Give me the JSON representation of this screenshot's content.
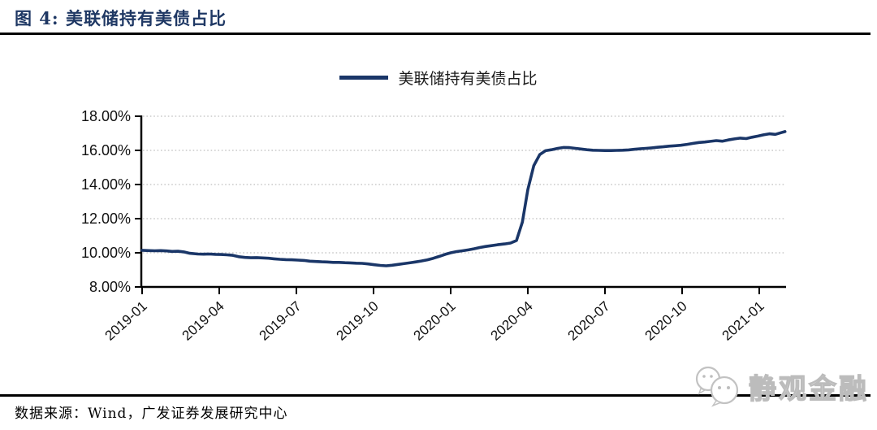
{
  "header": {
    "title": "图 4:  美联储持有美债占比"
  },
  "legend": {
    "label": "美联储持有美债占比"
  },
  "footer": {
    "source": "数据来源：Wind，广发证券发展研究中心"
  },
  "watermark": {
    "label": "静观金融",
    "icon": "wechat-icon"
  },
  "colors": {
    "line": "#1A3668",
    "title": "#1F3864",
    "grid": "#BFBFBF",
    "axis": "#000000",
    "watermark": "#C8C8C8"
  },
  "chart_data": {
    "type": "line",
    "title": "美联储持有美债占比",
    "ylabel": "",
    "xlabel": "",
    "ylim": [
      8,
      18
    ],
    "ytick_step": 2,
    "ytick_suffix": "%",
    "grid": "dotted-horizontal",
    "legend_position": "top-center",
    "xticks": [
      "2019-01",
      "2019-04",
      "2019-07",
      "2019-10",
      "2020-01",
      "2020-04",
      "2020-07",
      "2020-10",
      "2021-01"
    ],
    "series": [
      {
        "name": "美联储持有美债占比",
        "color": "#1A3668",
        "points": [
          [
            "2019-01-01",
            10.15
          ],
          [
            "2019-01-09",
            10.13
          ],
          [
            "2019-01-16",
            10.12
          ],
          [
            "2019-01-23",
            10.13
          ],
          [
            "2019-01-30",
            10.11
          ],
          [
            "2019-02-06",
            10.08
          ],
          [
            "2019-02-13",
            10.09
          ],
          [
            "2019-02-20",
            10.05
          ],
          [
            "2019-02-27",
            9.97
          ],
          [
            "2019-03-06",
            9.93
          ],
          [
            "2019-03-13",
            9.92
          ],
          [
            "2019-03-20",
            9.93
          ],
          [
            "2019-03-27",
            9.91
          ],
          [
            "2019-04-03",
            9.9
          ],
          [
            "2019-04-10",
            9.88
          ],
          [
            "2019-04-17",
            9.85
          ],
          [
            "2019-04-24",
            9.77
          ],
          [
            "2019-05-01",
            9.73
          ],
          [
            "2019-05-08",
            9.71
          ],
          [
            "2019-05-15",
            9.72
          ],
          [
            "2019-05-22",
            9.7
          ],
          [
            "2019-05-29",
            9.68
          ],
          [
            "2019-06-05",
            9.65
          ],
          [
            "2019-06-12",
            9.62
          ],
          [
            "2019-06-19",
            9.6
          ],
          [
            "2019-06-26",
            9.59
          ],
          [
            "2019-07-03",
            9.57
          ],
          [
            "2019-07-10",
            9.55
          ],
          [
            "2019-07-17",
            9.51
          ],
          [
            "2019-07-24",
            9.49
          ],
          [
            "2019-07-31",
            9.47
          ],
          [
            "2019-08-07",
            9.46
          ],
          [
            "2019-08-14",
            9.44
          ],
          [
            "2019-08-21",
            9.44
          ],
          [
            "2019-08-28",
            9.42
          ],
          [
            "2019-09-04",
            9.41
          ],
          [
            "2019-09-11",
            9.39
          ],
          [
            "2019-09-18",
            9.38
          ],
          [
            "2019-09-25",
            9.35
          ],
          [
            "2019-10-02",
            9.3
          ],
          [
            "2019-10-09",
            9.26
          ],
          [
            "2019-10-16",
            9.24
          ],
          [
            "2019-10-23",
            9.27
          ],
          [
            "2019-10-30",
            9.32
          ],
          [
            "2019-11-06",
            9.36
          ],
          [
            "2019-11-13",
            9.41
          ],
          [
            "2019-11-20",
            9.46
          ],
          [
            "2019-11-27",
            9.52
          ],
          [
            "2019-12-04",
            9.59
          ],
          [
            "2019-12-11",
            9.68
          ],
          [
            "2019-12-18",
            9.79
          ],
          [
            "2019-12-25",
            9.91
          ],
          [
            "2020-01-01",
            10.0
          ],
          [
            "2020-01-08",
            10.07
          ],
          [
            "2020-01-15",
            10.12
          ],
          [
            "2020-01-22",
            10.17
          ],
          [
            "2020-01-29",
            10.24
          ],
          [
            "2020-02-05",
            10.31
          ],
          [
            "2020-02-12",
            10.37
          ],
          [
            "2020-02-19",
            10.42
          ],
          [
            "2020-02-26",
            10.47
          ],
          [
            "2020-03-04",
            10.52
          ],
          [
            "2020-03-11",
            10.57
          ],
          [
            "2020-03-18",
            10.72
          ],
          [
            "2020-03-25",
            11.8
          ],
          [
            "2020-04-01",
            13.7
          ],
          [
            "2020-04-08",
            15.1
          ],
          [
            "2020-04-15",
            15.75
          ],
          [
            "2020-04-22",
            15.98
          ],
          [
            "2020-04-29",
            16.04
          ],
          [
            "2020-05-06",
            16.12
          ],
          [
            "2020-05-13",
            16.17
          ],
          [
            "2020-05-20",
            16.16
          ],
          [
            "2020-05-27",
            16.12
          ],
          [
            "2020-06-03",
            16.08
          ],
          [
            "2020-06-10",
            16.04
          ],
          [
            "2020-06-17",
            16.01
          ],
          [
            "2020-06-24",
            16.0
          ],
          [
            "2020-07-01",
            15.99
          ],
          [
            "2020-07-08",
            15.99
          ],
          [
            "2020-07-15",
            16.0
          ],
          [
            "2020-07-22",
            16.01
          ],
          [
            "2020-07-29",
            16.03
          ],
          [
            "2020-08-05",
            16.06
          ],
          [
            "2020-08-12",
            16.09
          ],
          [
            "2020-08-19",
            16.12
          ],
          [
            "2020-08-26",
            16.15
          ],
          [
            "2020-09-02",
            16.18
          ],
          [
            "2020-09-09",
            16.21
          ],
          [
            "2020-09-16",
            16.25
          ],
          [
            "2020-09-23",
            16.27
          ],
          [
            "2020-09-30",
            16.3
          ],
          [
            "2020-10-07",
            16.35
          ],
          [
            "2020-10-14",
            16.41
          ],
          [
            "2020-10-21",
            16.46
          ],
          [
            "2020-10-28",
            16.49
          ],
          [
            "2020-11-04",
            16.53
          ],
          [
            "2020-11-11",
            16.57
          ],
          [
            "2020-11-18",
            16.54
          ],
          [
            "2020-11-25",
            16.61
          ],
          [
            "2020-12-02",
            16.67
          ],
          [
            "2020-12-09",
            16.72
          ],
          [
            "2020-12-16",
            16.69
          ],
          [
            "2020-12-23",
            16.77
          ],
          [
            "2020-12-30",
            16.84
          ],
          [
            "2021-01-06",
            16.91
          ],
          [
            "2021-01-13",
            16.97
          ],
          [
            "2021-01-20",
            16.94
          ],
          [
            "2021-01-27",
            17.04
          ],
          [
            "2021-02-01",
            17.1
          ]
        ]
      }
    ]
  }
}
